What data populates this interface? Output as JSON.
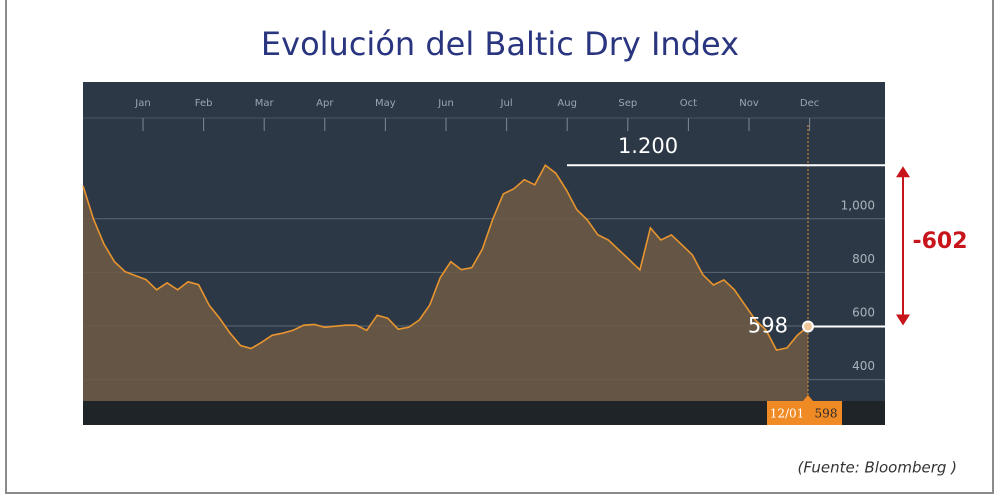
{
  "chart_data": {
    "type": "area",
    "title": "Evolución del Baltic Dry Index",
    "source": "(Fuente: Bloomberg )",
    "months": [
      "Jan",
      "Feb",
      "Mar",
      "Apr",
      "May",
      "Jun",
      "Jul",
      "Aug",
      "Sep",
      "Oct",
      "Nov",
      "Dec"
    ],
    "series": [
      {
        "color": "#e8952f",
        "values": [
          1123,
          999,
          905,
          840,
          803,
          788,
          773,
          735,
          761,
          735,
          765,
          754,
          678,
          629,
          573,
          527,
          516,
          539,
          565,
          573,
          584,
          603,
          606,
          595,
          599,
          603,
          603,
          584,
          640,
          629,
          588,
          595,
          622,
          678,
          780,
          840,
          810,
          818,
          886,
          999,
          1093,
          1112,
          1146,
          1127,
          1200,
          1170,
          1108,
          1034,
          996,
          940,
          921,
          884,
          847,
          809,
          966,
          921,
          940,
          903,
          865,
          791,
          753,
          772,
          735,
          678,
          622,
          585,
          510,
          518,
          566,
          598
        ]
      }
    ],
    "ylim": [
      320,
      1350
    ],
    "yticks": [
      400,
      600,
      800,
      {
        "value": 1000,
        "label": "1,000"
      }
    ],
    "grid": true,
    "annotations": {
      "peak": {
        "value": 1200,
        "label": "1.200"
      },
      "current": 598,
      "change": -602,
      "cursor_date": "12/01"
    }
  }
}
